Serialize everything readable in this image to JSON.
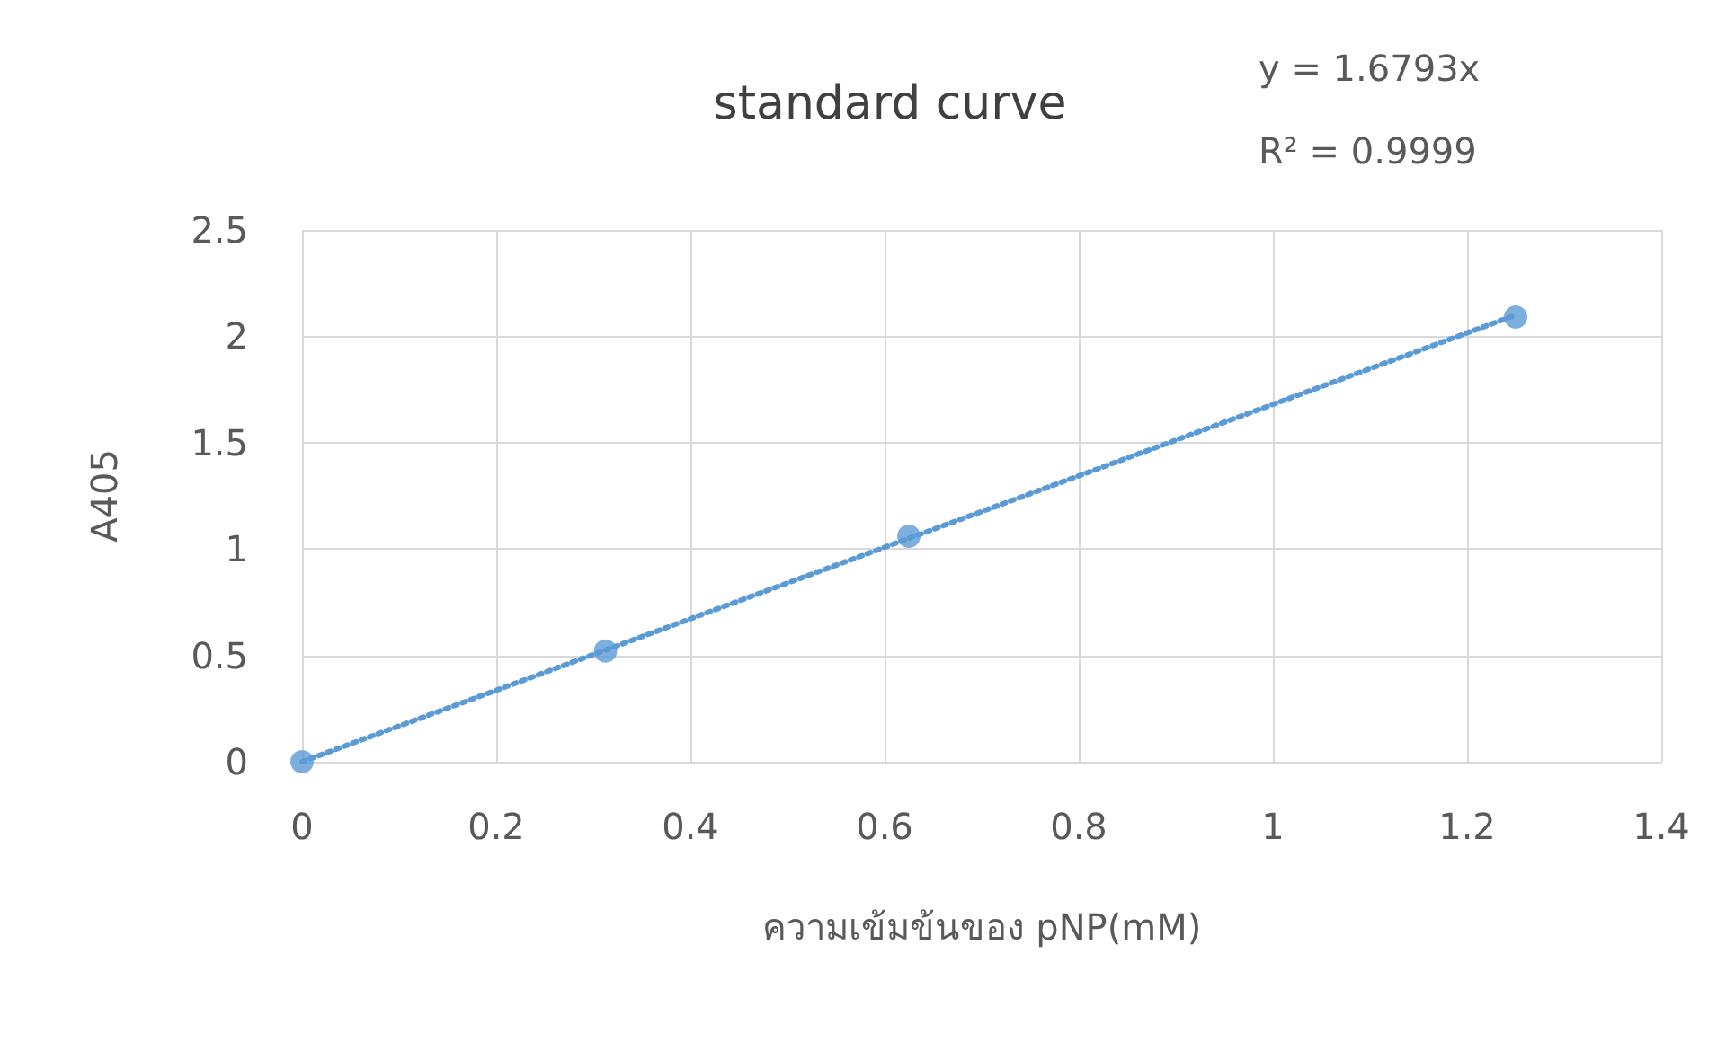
{
  "chart_data": {
    "type": "scatter",
    "title": "standard curve",
    "xlabel": "ความเข้มข้นของ pNP(mM)",
    "ylabel": "A405",
    "annotations": [
      "y = 1.6793x",
      "R² = 0.9999"
    ],
    "series": [
      {
        "color": "#5b9bd5",
        "marker": "circle",
        "x": [
          0,
          0.3125,
          0.625,
          1.25
        ],
        "values": [
          0,
          0.52,
          1.06,
          2.09
        ]
      },
      {
        "type": "line",
        "color": "#5b9bd5",
        "marker": "none",
        "line_style": "dotted",
        "x": [
          0,
          1.25
        ],
        "values": [
          0,
          2.1
        ]
      }
    ],
    "xlim": [
      0,
      1.4
    ],
    "xticks": [
      0,
      0.2,
      0.4,
      0.6,
      0.8,
      1,
      1.2,
      1.4
    ],
    "ylim": [
      0,
      2.5
    ],
    "yticks": [
      0,
      0.5,
      1,
      1.5,
      2,
      2.5
    ],
    "grid": true
  }
}
